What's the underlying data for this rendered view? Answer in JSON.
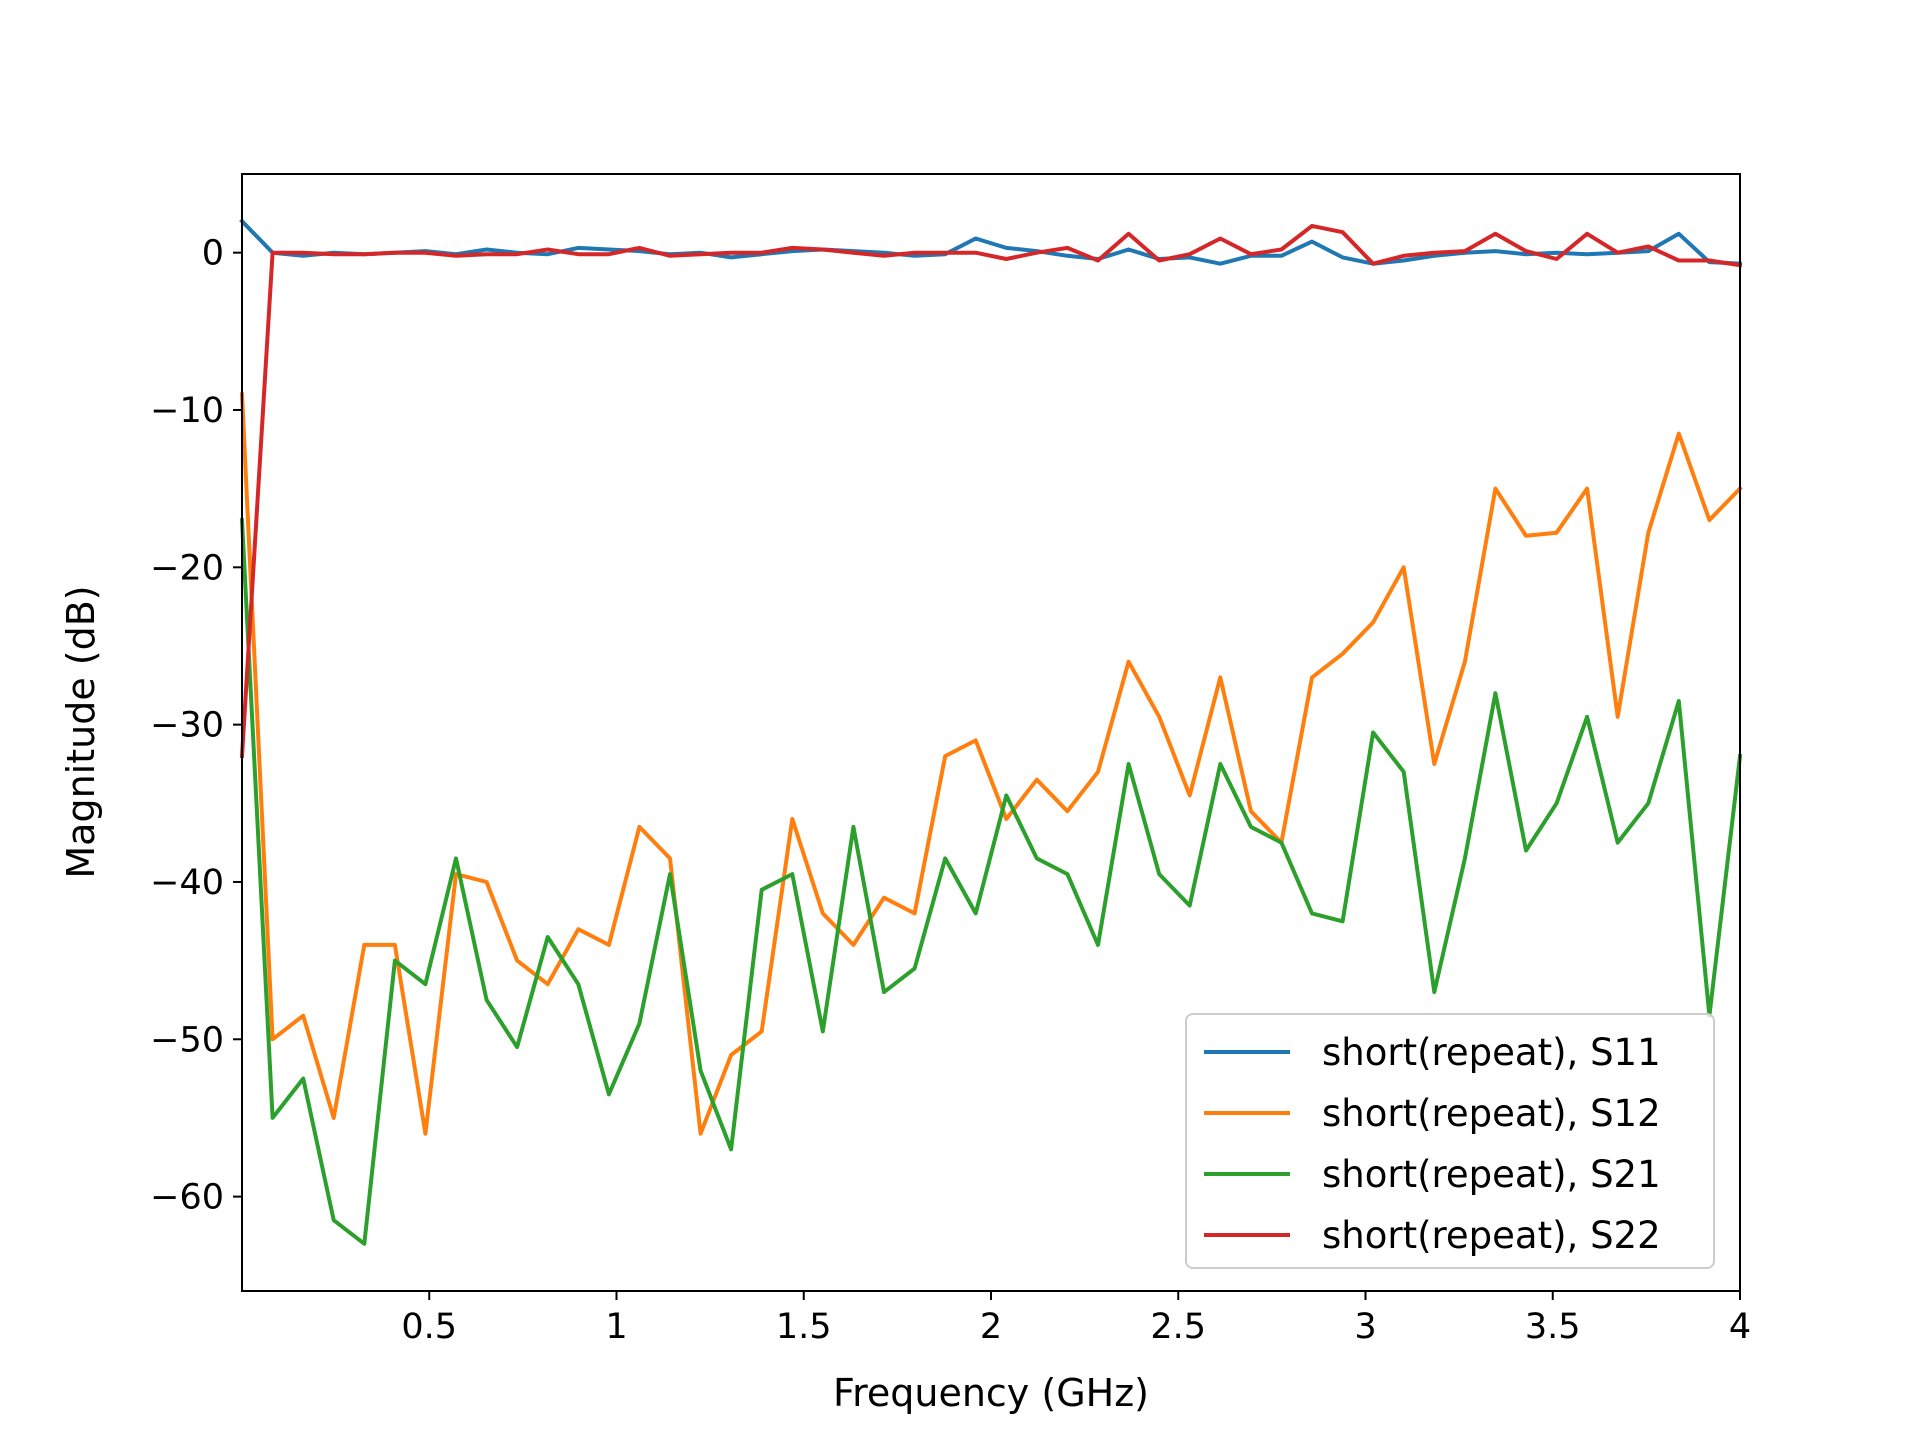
{
  "chart_data": {
    "type": "line",
    "title": "",
    "xlabel": "Frequency (GHz)",
    "ylabel": "Magnitude (dB)",
    "xlim": [
      0,
      4
    ],
    "ylim": [
      -66,
      5
    ],
    "grid": false,
    "legend_position": "lower-right",
    "xticks": [
      {
        "value": 0.5,
        "label": "0.5"
      },
      {
        "value": 1,
        "label": "1"
      },
      {
        "value": 1.5,
        "label": "1.5"
      },
      {
        "value": 2,
        "label": "2"
      },
      {
        "value": 2.5,
        "label": "2.5"
      },
      {
        "value": 3,
        "label": "3"
      },
      {
        "value": 3.5,
        "label": "3.5"
      },
      {
        "value": 4,
        "label": "4"
      }
    ],
    "yticks": [
      {
        "value": 0,
        "label": "0"
      },
      {
        "value": -10,
        "label": "−10"
      },
      {
        "value": -20,
        "label": "−20"
      },
      {
        "value": -30,
        "label": "−30"
      },
      {
        "value": -40,
        "label": "−40"
      },
      {
        "value": -50,
        "label": "−50"
      },
      {
        "value": -60,
        "label": "−60"
      }
    ],
    "x": [
      0.0,
      0.0816,
      0.1633,
      0.2449,
      0.3265,
      0.4082,
      0.4898,
      0.5714,
      0.6531,
      0.7347,
      0.8163,
      0.898,
      0.9796,
      1.0612,
      1.1429,
      1.2245,
      1.3061,
      1.3878,
      1.4694,
      1.551,
      1.6327,
      1.7143,
      1.7959,
      1.8776,
      1.9592,
      2.0408,
      2.1224,
      2.2041,
      2.2857,
      2.3673,
      2.449,
      2.5306,
      2.6122,
      2.6939,
      2.7755,
      2.8571,
      2.9388,
      3.0204,
      3.102,
      3.1837,
      3.2653,
      3.3469,
      3.4286,
      3.5102,
      3.5918,
      3.6735,
      3.7551,
      3.8367,
      3.9184,
      4.0
    ],
    "series": [
      {
        "name": "short(repeat), S11",
        "color": "#1f77b4",
        "values": [
          2.0,
          0.0,
          -0.2,
          0.0,
          -0.1,
          0.0,
          0.1,
          -0.1,
          0.2,
          0.0,
          -0.1,
          0.3,
          0.2,
          0.1,
          -0.1,
          0.0,
          -0.3,
          -0.1,
          0.1,
          0.2,
          0.1,
          0.0,
          -0.2,
          -0.1,
          0.9,
          0.3,
          0.1,
          -0.2,
          -0.4,
          0.2,
          -0.4,
          -0.3,
          -0.7,
          -0.2,
          -0.2,
          0.7,
          -0.3,
          -0.7,
          -0.5,
          -0.2,
          0.0,
          0.1,
          -0.1,
          0.0,
          -0.1,
          0.0,
          0.1,
          1.2,
          -0.6,
          -0.7
        ]
      },
      {
        "name": "short(repeat), S12",
        "color": "#ff7f0e",
        "values": [
          -9.0,
          -50.0,
          -48.5,
          -55.0,
          -44.0,
          -44.0,
          -56.0,
          -39.5,
          -40.0,
          -45.0,
          -46.5,
          -43.0,
          -44.0,
          -36.5,
          -38.5,
          -56.0,
          -51.0,
          -49.5,
          -36.0,
          -42.0,
          -44.0,
          -41.0,
          -42.0,
          -32.0,
          -31.0,
          -36.0,
          -33.5,
          -35.5,
          -33.0,
          -26.0,
          -29.5,
          -34.5,
          -27.0,
          -35.5,
          -37.5,
          -27.0,
          -25.5,
          -23.5,
          -20.0,
          -32.5,
          -26.0,
          -15.0,
          -18.0,
          -17.8,
          -15.0,
          -29.5,
          -17.8,
          -11.5,
          -17.0,
          -15.0
        ]
      },
      {
        "name": "short(repeat), S21",
        "color": "#2ca02c",
        "values": [
          -17.0,
          -55.0,
          -52.5,
          -61.5,
          -63.0,
          -45.0,
          -46.5,
          -38.5,
          -47.5,
          -50.5,
          -43.5,
          -46.5,
          -53.5,
          -49.0,
          -39.5,
          -52.0,
          -57.0,
          -40.5,
          -39.5,
          -49.5,
          -36.5,
          -47.0,
          -45.5,
          -38.5,
          -42.0,
          -34.5,
          -38.5,
          -39.5,
          -44.0,
          -32.5,
          -39.5,
          -41.5,
          -32.5,
          -36.5,
          -37.5,
          -42.0,
          -42.5,
          -30.5,
          -33.0,
          -47.0,
          -38.5,
          -28.0,
          -38.0,
          -35.0,
          -29.5,
          -37.5,
          -35.0,
          -28.5,
          -48.5,
          -32.0
        ]
      },
      {
        "name": "short(repeat), S22",
        "color": "#d62728",
        "values": [
          -32.0,
          0.0,
          0.0,
          -0.1,
          -0.1,
          0.0,
          0.0,
          -0.2,
          -0.1,
          -0.1,
          0.2,
          -0.1,
          -0.1,
          0.3,
          -0.2,
          -0.1,
          0.0,
          0.0,
          0.3,
          0.2,
          0.0,
          -0.2,
          0.0,
          0.0,
          0.0,
          -0.4,
          0.0,
          0.3,
          -0.5,
          1.2,
          -0.5,
          -0.1,
          0.9,
          -0.1,
          0.2,
          1.7,
          1.3,
          -0.7,
          -0.2,
          0.0,
          0.1,
          1.2,
          0.1,
          -0.4,
          1.2,
          0.0,
          0.4,
          -0.5,
          -0.5,
          -0.8
        ]
      }
    ]
  }
}
